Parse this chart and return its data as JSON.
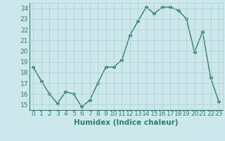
{
  "x": [
    0,
    1,
    2,
    3,
    4,
    5,
    6,
    7,
    8,
    9,
    10,
    11,
    12,
    13,
    14,
    15,
    16,
    17,
    18,
    19,
    20,
    21,
    22,
    23
  ],
  "y": [
    18.5,
    17.2,
    16.0,
    15.1,
    16.2,
    16.0,
    14.8,
    15.4,
    17.0,
    18.5,
    18.5,
    19.2,
    21.5,
    22.8,
    24.1,
    23.5,
    24.1,
    24.1,
    23.8,
    23.0,
    19.9,
    21.8,
    17.5,
    15.3
  ],
  "line_color": "#2e7d6e",
  "marker": "D",
  "marker_size": 2.5,
  "bg_color": "#cce8ec",
  "grid_color": "#aacdd4",
  "xlabel": "Humidex (Indice chaleur)",
  "ylim": [
    14.5,
    24.5
  ],
  "xlim": [
    -0.5,
    23.5
  ],
  "yticks": [
    15,
    16,
    17,
    18,
    19,
    20,
    21,
    22,
    23,
    24
  ],
  "xticks": [
    0,
    1,
    2,
    3,
    4,
    5,
    6,
    7,
    8,
    9,
    10,
    11,
    12,
    13,
    14,
    15,
    16,
    17,
    18,
    19,
    20,
    21,
    22,
    23
  ],
  "tick_color": "#2e7d6e",
  "label_fontsize": 7.5,
  "tick_fontsize": 6.5
}
